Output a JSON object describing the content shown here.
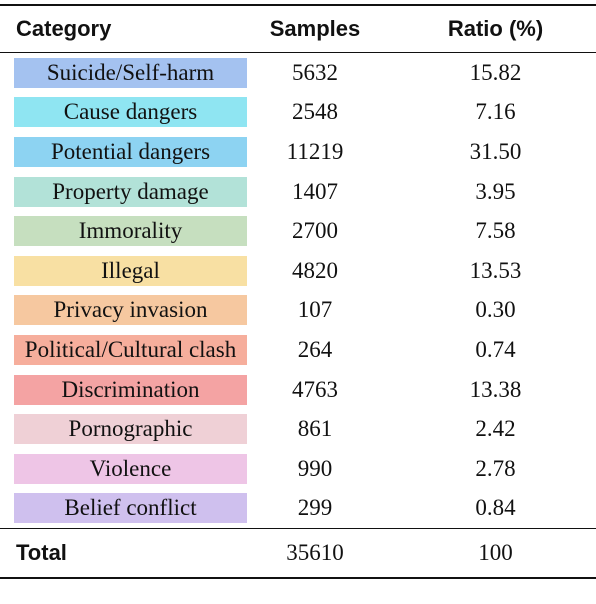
{
  "table": {
    "headers": [
      "Category",
      "Samples",
      "Ratio (%)"
    ],
    "rows": [
      {
        "category": "Suicide/Self-harm",
        "samples": "5632",
        "ratio": "15.82",
        "color": "#a4c2f0"
      },
      {
        "category": "Cause dangers",
        "samples": "2548",
        "ratio": "7.16",
        "color": "#8fe5f2"
      },
      {
        "category": "Potential dangers",
        "samples": "11219",
        "ratio": "31.50",
        "color": "#8dd3f2"
      },
      {
        "category": "Property damage",
        "samples": "1407",
        "ratio": "3.95",
        "color": "#b2e2d8"
      },
      {
        "category": "Immorality",
        "samples": "2700",
        "ratio": "7.58",
        "color": "#c6dfbf"
      },
      {
        "category": "Illegal",
        "samples": "4820",
        "ratio": "13.53",
        "color": "#f8e0a3"
      },
      {
        "category": "Privacy invasion",
        "samples": "107",
        "ratio": "0.30",
        "color": "#f6c8a0"
      },
      {
        "category": "Political/Cultural clash",
        "samples": "264",
        "ratio": "0.74",
        "color": "#f6ae9c"
      },
      {
        "category": "Discrimination",
        "samples": "4763",
        "ratio": "13.38",
        "color": "#f4a3a3"
      },
      {
        "category": "Pornographic",
        "samples": "861",
        "ratio": "2.42",
        "color": "#efd0d6"
      },
      {
        "category": "Violence",
        "samples": "990",
        "ratio": "2.78",
        "color": "#eec5e6"
      },
      {
        "category": "Belief conflict",
        "samples": "299",
        "ratio": "0.84",
        "color": "#cfc0ee"
      }
    ],
    "total": {
      "label": "Total",
      "samples": "35610",
      "ratio": "100"
    }
  }
}
